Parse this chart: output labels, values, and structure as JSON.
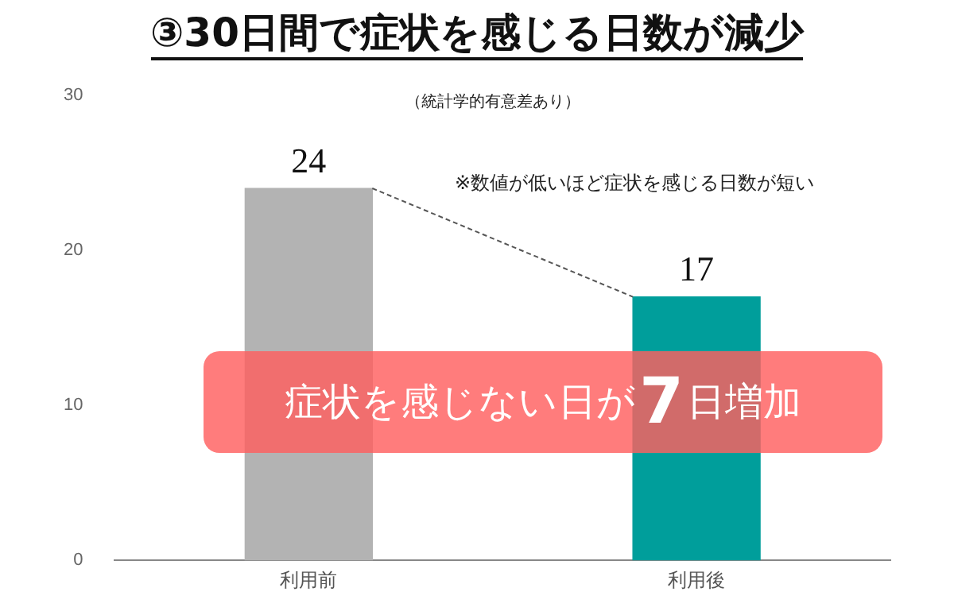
{
  "chart_data": {
    "type": "bar",
    "title": "③30日間で症状を感じる日数が減少",
    "subtitle": "（統計学的有意差あり）",
    "categories": [
      "利用前",
      "利用後"
    ],
    "values": [
      24,
      17
    ],
    "colors": [
      "#b3b3b3",
      "#009e9b"
    ],
    "ylim": [
      0,
      30
    ],
    "yticks": [
      0,
      10,
      20,
      30
    ],
    "grid": false,
    "legend": false,
    "data_labels": true,
    "annotations": [
      "※数値が低いほど症状を感じる日数が短い",
      "症状を感じない日が7日増加"
    ]
  }
}
